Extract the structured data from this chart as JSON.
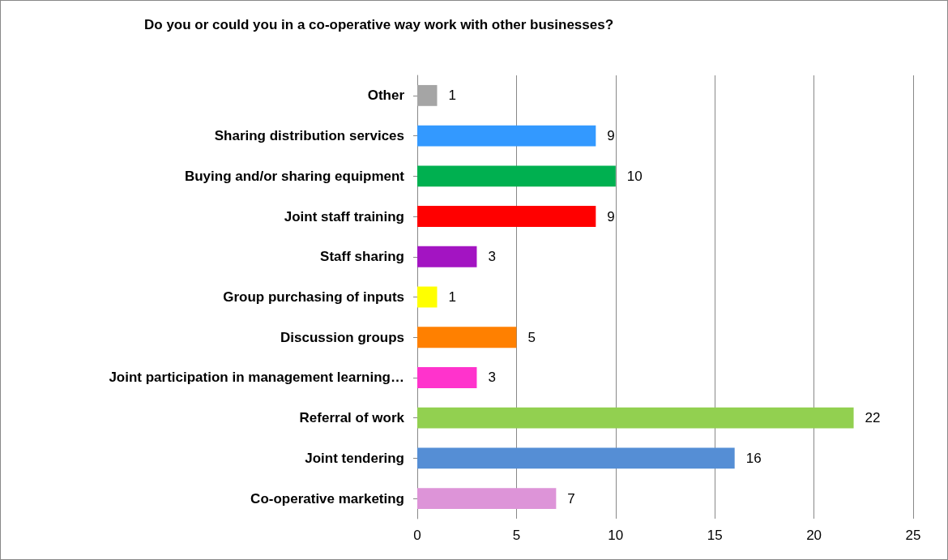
{
  "chart_data": {
    "type": "bar",
    "orientation": "horizontal",
    "title": "Do you or could you in a co-operative way work with other businesses?",
    "categories": [
      "Other",
      "Sharing distribution services",
      "Buying and/or sharing equipment",
      "Joint staff training",
      "Staff sharing",
      "Group purchasing of inputs",
      "Discussion groups",
      "Joint participation in management learning…",
      "Referral of work",
      "Joint tendering",
      "Co-operative marketing"
    ],
    "values": [
      1,
      9,
      10,
      9,
      3,
      1,
      5,
      3,
      22,
      16,
      7
    ],
    "colors": [
      "#a5a5a5",
      "#3399ff",
      "#00b050",
      "#ff0000",
      "#a314c2",
      "#ffff00",
      "#ff8000",
      "#ff33cc",
      "#92d050",
      "#558ed5",
      "#dd94d8"
    ],
    "xlim": [
      0,
      25
    ],
    "xticks": [
      0,
      5,
      10,
      15,
      20,
      25
    ],
    "grid": "x",
    "data_labels": true
  }
}
